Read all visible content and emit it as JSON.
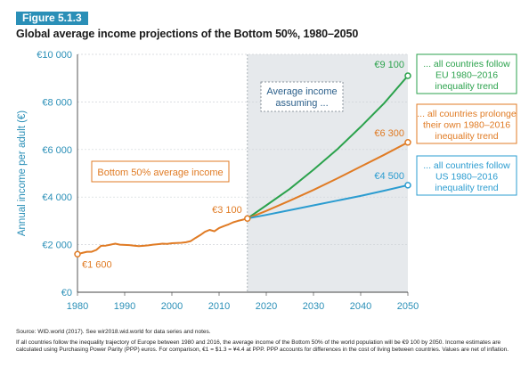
{
  "figure": {
    "label": "Figure 5.1.3",
    "title": "Global average income projections of the Bottom 50%, 1980–2050"
  },
  "chart_data": {
    "type": "line",
    "xlim": [
      1980,
      2050
    ],
    "ylim": [
      0,
      10000
    ],
    "x_ticks": [
      1980,
      1990,
      2000,
      2010,
      2020,
      2030,
      2040,
      2050
    ],
    "y_ticks": [
      {
        "value": 0,
        "label": "€0"
      },
      {
        "value": 2000,
        "label": "€2 000"
      },
      {
        "value": 4000,
        "label": "€4 000"
      },
      {
        "value": 6000,
        "label": "€6 000"
      },
      {
        "value": 8000,
        "label": "€8 000"
      },
      {
        "value": 10000,
        "label": "€10 000"
      }
    ],
    "ylabel": "Annual income per adult (€)",
    "xlabel": "",
    "grid": true,
    "shaded_region": {
      "from": 2016,
      "to": 2050,
      "label": "Average income assuming ..."
    },
    "historical": {
      "name": "Bottom 50% average income",
      "color": "#e07b24",
      "x": [
        1980,
        1981,
        1982,
        1983,
        1984,
        1985,
        1986,
        1987,
        1988,
        1989,
        1990,
        1991,
        1992,
        1993,
        1994,
        1995,
        1996,
        1997,
        1998,
        1999,
        2000,
        2001,
        2002,
        2003,
        2004,
        2005,
        2006,
        2007,
        2008,
        2009,
        2010,
        2011,
        2012,
        2013,
        2014,
        2015,
        2016
      ],
      "y": [
        1600,
        1650,
        1700,
        1700,
        1780,
        1950,
        1960,
        2000,
        2040,
        2000,
        1990,
        1980,
        1960,
        1940,
        1950,
        1970,
        2000,
        2020,
        2040,
        2030,
        2060,
        2070,
        2080,
        2100,
        2150,
        2280,
        2400,
        2540,
        2620,
        2560,
        2700,
        2780,
        2850,
        2940,
        3000,
        3050,
        3100
      ]
    },
    "projections": [
      {
        "name": "... all countries follow EU 1980–2016 inequality trend",
        "color": "#2ba24c",
        "x": [
          2016,
          2020,
          2025,
          2030,
          2035,
          2040,
          2045,
          2050
        ],
        "y": [
          3100,
          3650,
          4350,
          5150,
          6000,
          6950,
          7950,
          9100
        ]
      },
      {
        "name": "... all countries prolonge their own 1980–2016 inequality trend",
        "color": "#e07b24",
        "x": [
          2016,
          2020,
          2025,
          2030,
          2035,
          2040,
          2045,
          2050
        ],
        "y": [
          3100,
          3420,
          3850,
          4300,
          4780,
          5280,
          5780,
          6300
        ]
      },
      {
        "name": "... all countries follow US 1980–2016 inequality trend",
        "color": "#2b9cd0",
        "x": [
          2016,
          2020,
          2025,
          2030,
          2035,
          2040,
          2045,
          2050
        ],
        "y": [
          3100,
          3250,
          3450,
          3650,
          3850,
          4050,
          4270,
          4500
        ]
      }
    ],
    "annotations": [
      {
        "text": "€1 600",
        "x": 1980,
        "y": 1600
      },
      {
        "text": "€3 100",
        "x": 2016,
        "y": 3100
      },
      {
        "text": "€9 100",
        "x": 2050,
        "y": 9100
      },
      {
        "text": "€6 300",
        "x": 2050,
        "y": 6300
      },
      {
        "text": "€4 500",
        "x": 2050,
        "y": 4500
      }
    ]
  },
  "legend": {
    "historical_label": "Bottom 50% average income",
    "shaded_label_line1": "Average income",
    "shaded_label_line2": "assuming ...",
    "eu_lines": [
      "... all countries follow",
      "EU 1980–2016",
      "inequality trend"
    ],
    "own_lines": [
      "... all countries prolonge",
      "their own 1980–2016",
      "inequality trend"
    ],
    "us_lines": [
      "... all countries follow",
      "US 1980–2016",
      "inequality trend"
    ]
  },
  "notes": {
    "source": "Source: WID.world (2017). See wir2018.wid.world for data series and notes.",
    "text": "If all countries follow the inequality trajectory of Europe between 1980 and 2016, the average income of the Bottom 50% of the world population will be €9 100 by 2050. Income estimates are calculated using Purchasing Power Parity (PPP) euros. For comparison, €1 = $1.3 = ¥4.4 at PPP. PPP accounts for differences in the cost of living between countries. Values are net of inflation."
  },
  "colors": {
    "badge": "#2a8fb7",
    "axis_text": "#2a8fb7",
    "shade": "#e6e9ec",
    "green": "#2ba24c",
    "orange": "#e07b24",
    "blue": "#2b9cd0"
  }
}
